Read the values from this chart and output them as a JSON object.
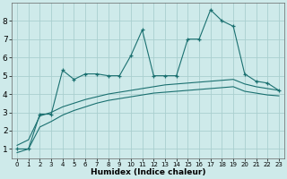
{
  "xlabel": "Humidex (Indice chaleur)",
  "background_color": "#ceeaea",
  "grid_color": "#aacfcf",
  "line_color": "#1a7070",
  "x_ticks": [
    0,
    1,
    2,
    3,
    4,
    5,
    6,
    7,
    8,
    9,
    10,
    11,
    12,
    13,
    14,
    15,
    16,
    17,
    18,
    19,
    20,
    21,
    22,
    23
  ],
  "y_ticks": [
    1,
    2,
    3,
    4,
    5,
    6,
    7,
    8
  ],
  "ylim": [
    0.5,
    9.0
  ],
  "xlim": [
    -0.5,
    23.5
  ],
  "series1_x": [
    0,
    1,
    2,
    3,
    4,
    5,
    6,
    7,
    8,
    9,
    10,
    11,
    12,
    13,
    14,
    15,
    16,
    17,
    18,
    19,
    20,
    21,
    22,
    23
  ],
  "series1_y": [
    1.0,
    1.0,
    2.9,
    2.9,
    5.3,
    4.8,
    5.1,
    5.1,
    5.0,
    5.0,
    6.1,
    7.5,
    5.0,
    5.0,
    5.0,
    7.0,
    7.0,
    8.6,
    8.0,
    7.7,
    5.1,
    4.7,
    4.6,
    4.2
  ],
  "series2_x": [
    0,
    1,
    2,
    3,
    4,
    5,
    6,
    7,
    8,
    9,
    10,
    11,
    12,
    13,
    14,
    15,
    16,
    17,
    18,
    19,
    20,
    21,
    22,
    23
  ],
  "series2_y": [
    1.2,
    1.5,
    2.8,
    3.0,
    3.3,
    3.5,
    3.7,
    3.85,
    4.0,
    4.1,
    4.2,
    4.3,
    4.4,
    4.5,
    4.55,
    4.6,
    4.65,
    4.7,
    4.75,
    4.8,
    4.55,
    4.4,
    4.3,
    4.2
  ],
  "series3_x": [
    0,
    1,
    2,
    3,
    4,
    5,
    6,
    7,
    8,
    9,
    10,
    11,
    12,
    13,
    14,
    15,
    16,
    17,
    18,
    19,
    20,
    21,
    22,
    23
  ],
  "series3_y": [
    0.8,
    1.0,
    2.2,
    2.5,
    2.85,
    3.1,
    3.3,
    3.5,
    3.65,
    3.75,
    3.85,
    3.95,
    4.05,
    4.1,
    4.15,
    4.2,
    4.25,
    4.3,
    4.35,
    4.4,
    4.15,
    4.05,
    3.95,
    3.9
  ]
}
